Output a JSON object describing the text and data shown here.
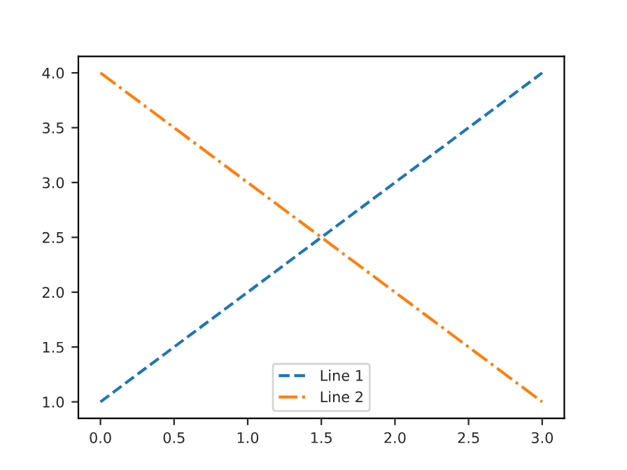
{
  "chart_data": {
    "type": "line",
    "x": [
      0,
      1,
      2,
      3
    ],
    "series": [
      {
        "name": "Line 1",
        "color": "#1f77b4",
        "values": [
          1,
          2,
          3,
          4
        ],
        "line_style": "dashed"
      },
      {
        "name": "Line 2",
        "color": "#ff7f0e",
        "values": [
          4,
          3,
          2,
          1
        ],
        "line_style": "dashdot"
      }
    ],
    "xlim": [
      -0.15,
      3.15
    ],
    "ylim": [
      0.85,
      4.15
    ],
    "xticks": [
      {
        "value": 0,
        "label": "0.0"
      },
      {
        "value": 0.5,
        "label": "0.5"
      },
      {
        "value": 1,
        "label": "1.0"
      },
      {
        "value": 1.5,
        "label": "1.5"
      },
      {
        "value": 2,
        "label": "2.0"
      },
      {
        "value": 2.5,
        "label": "2.5"
      },
      {
        "value": 3,
        "label": "3.0"
      }
    ],
    "yticks": [
      {
        "value": 1,
        "label": "1.0"
      },
      {
        "value": 1.5,
        "label": "1.5"
      },
      {
        "value": 2,
        "label": "2.0"
      },
      {
        "value": 2.5,
        "label": "2.5"
      },
      {
        "value": 3,
        "label": "3.0"
      },
      {
        "value": 3.5,
        "label": "3.5"
      },
      {
        "value": 4,
        "label": "4.0"
      }
    ],
    "legend": "bottom",
    "grid": false
  }
}
